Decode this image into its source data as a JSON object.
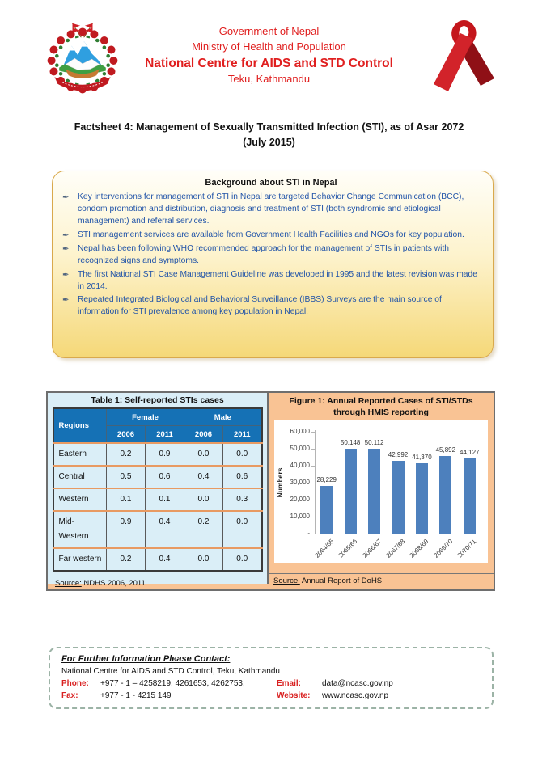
{
  "header": {
    "line1": "Government of Nepal",
    "line2": "Ministry of Health and Population",
    "line3": "National Centre for AIDS and STD Control",
    "line4": "Teku, Kathmandu",
    "text_color": "#e01f1f",
    "left_icon": "nepal-coat-of-arms",
    "right_icon": "aids-red-ribbon"
  },
  "doc_title": {
    "line1": "Factsheet 4: Management of Sexually Transmitted Infection (STI), as of Asar 2072",
    "line2": "(July 2015)"
  },
  "background_box": {
    "title": "Background about STI in Nepal",
    "bullet_icon": "pen-nib-icon",
    "text_color": "#2053a8",
    "bullets": [
      "Key interventions for management of STI in Nepal are targeted Behavior Change Communication (BCC), condom promotion and distribution, diagnosis and treatment of STI (both syndromic and etiological management) and referral services.",
      "STI management services are available from Government Health Facilities and NGOs for key population.",
      "Nepal has been following WHO recommended approach for the management of STIs in patients with recognized signs and symptoms.",
      "The first National STI Case Management Guideline was developed in 1995 and the latest revision was made in 2014.",
      "Repeated Integrated Biological and Behavioral Surveillance (IBBS) Surveys are the main source of information for STI prevalence among key population in Nepal."
    ]
  },
  "table_panel": {
    "title": "Table 1: Self-reported STIs cases",
    "corner_header": "Regions",
    "group_headers": [
      "Female",
      "Male"
    ],
    "sub_headers": [
      "2006",
      "2011",
      "2006",
      "2011"
    ],
    "rows": [
      {
        "region": "Eastern",
        "values": [
          "0.2",
          "0.9",
          "0.0",
          "0.0"
        ]
      },
      {
        "region": "Central",
        "values": [
          "0.5",
          "0.6",
          "0.4",
          "0.6"
        ]
      },
      {
        "region": "Western",
        "values": [
          "0.1",
          "0.1",
          "0.0",
          "0.3"
        ]
      },
      {
        "region": "Mid-\nWestern",
        "values": [
          "0.9",
          "0.4",
          "0.2",
          "0.0"
        ]
      },
      {
        "region": "Far western",
        "values": [
          "0.2",
          "0.4",
          "0.0",
          "0.0"
        ]
      }
    ],
    "source_label": "Source:",
    "source_text": " NDHS 2006, 2011",
    "header_bg": "#1571b5",
    "panel_bg": "#daeef7"
  },
  "figure_panel": {
    "title_line1": "Figure 1: Annual Reported Cases of STI/STDs",
    "title_line2": "through HMIS reporting",
    "source_label": "Source:",
    "source_text": " Annual Report of DoHS",
    "panel_bg": "#f9c394"
  },
  "chart_data": {
    "type": "bar",
    "title": "Figure 1: Annual Reported Cases of STI/STDs through HMIS reporting",
    "categories": [
      "2064/65",
      "2065/66",
      "2066/67",
      "2067/68",
      "2068/69",
      "2069/70",
      "2070/71"
    ],
    "values": [
      28229,
      50148,
      50112,
      42992,
      41370,
      45892,
      44127
    ],
    "value_labels": [
      "28,229",
      "50,148",
      "50,112",
      "42,992",
      "41,370",
      "45,892",
      "44,127"
    ],
    "xlabel": "",
    "ylabel": "Numbers",
    "ylim": [
      0,
      60000
    ],
    "ytick_labels": [
      "60,000",
      "50,000",
      "40,000",
      "30,000",
      "20,000",
      "10,000",
      "-"
    ],
    "bar_color": "#4d80bd",
    "grid": false,
    "legend": false
  },
  "contact": {
    "heading": "For Further Information Please Contact:",
    "org": "National Centre for AIDS and STD Control, Teku, Kathmandu",
    "phone_label": "Phone:",
    "phone_value": "+977 - 1 – 4258219, 4261653, 4262753,",
    "email_label": "Email:",
    "email_value": "data@ncasc.gov.np",
    "fax_label": "Fax:",
    "fax_value": "+977 - 1 - 4215 149",
    "website_label": "Website:",
    "website_value": "www.ncasc.gov.np",
    "label_color": "#d92121"
  }
}
